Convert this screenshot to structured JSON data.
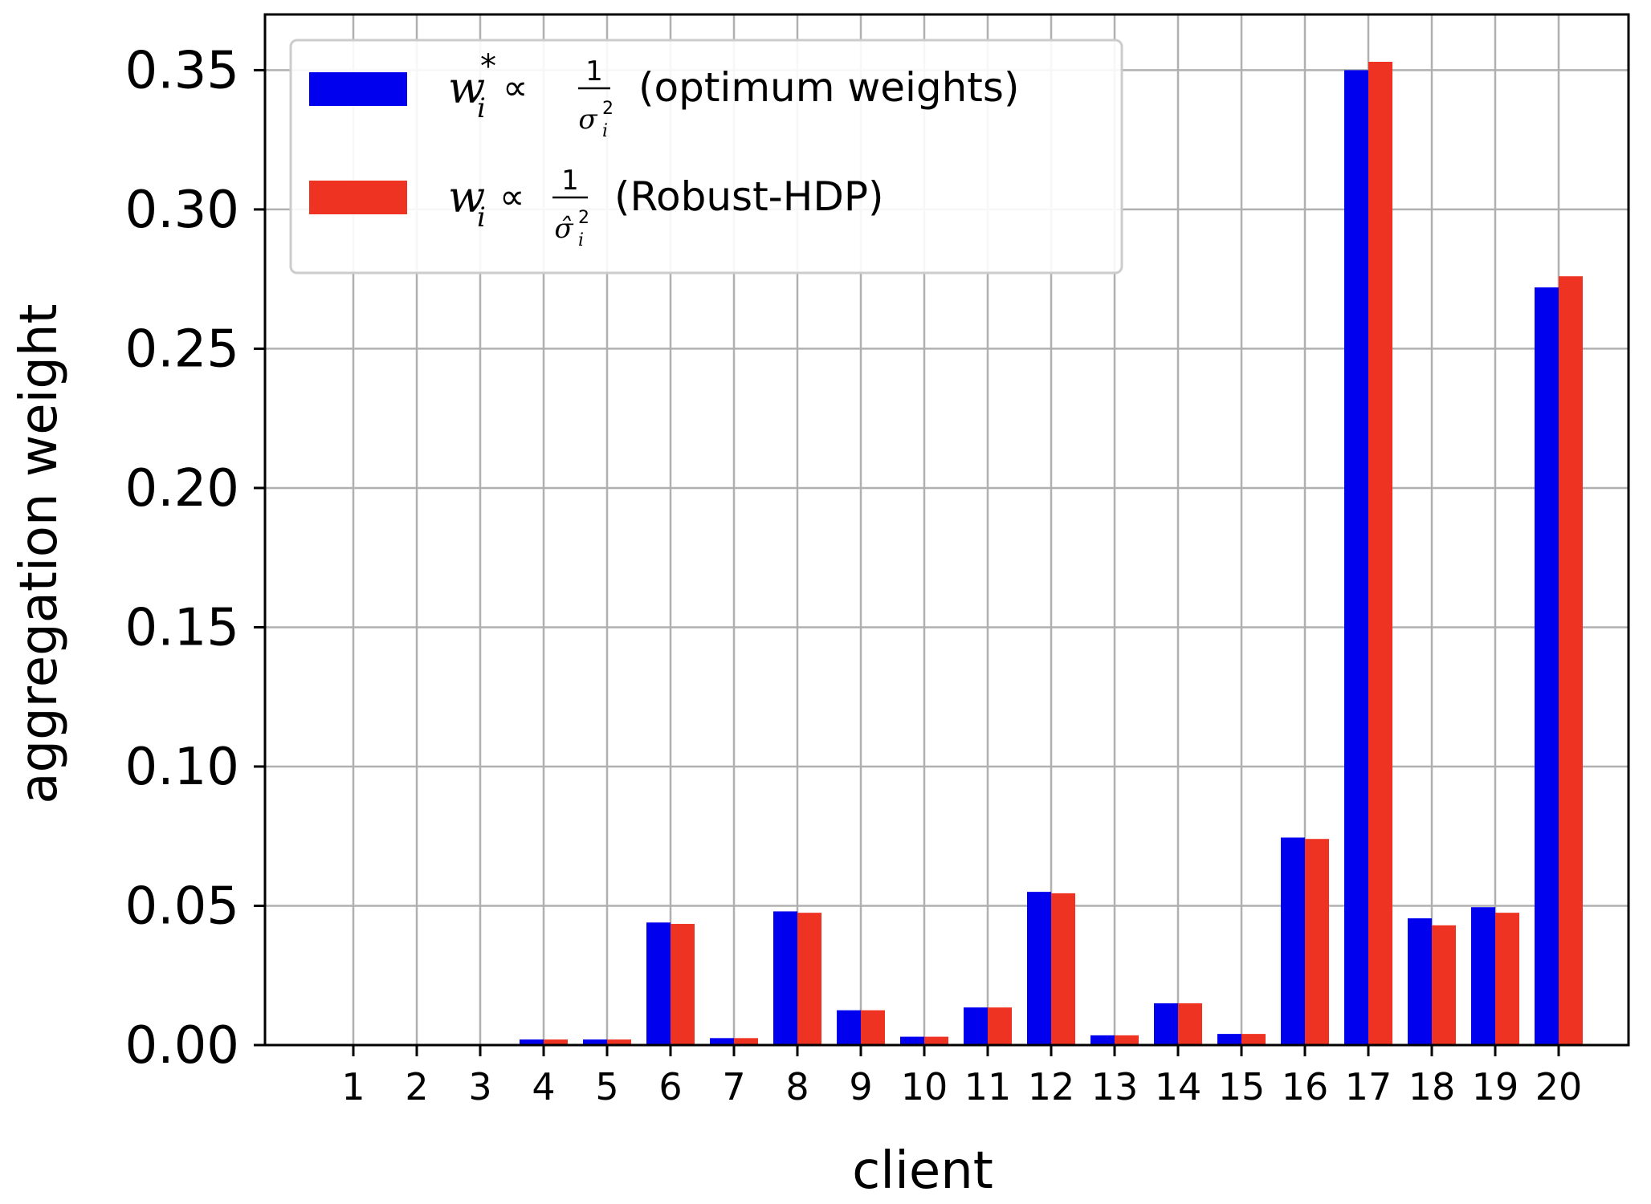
{
  "chart_data": {
    "type": "bar",
    "xlabel": "client",
    "ylabel": "aggregation weight",
    "ylim": [
      0,
      0.37
    ],
    "yticks": [
      "0.00",
      "0.05",
      "0.10",
      "0.15",
      "0.20",
      "0.25",
      "0.30",
      "0.35"
    ],
    "grid": true,
    "legend_position": "top-left",
    "categories": [
      "1",
      "2",
      "3",
      "4",
      "5",
      "6",
      "7",
      "8",
      "9",
      "10",
      "11",
      "12",
      "13",
      "14",
      "15",
      "16",
      "17",
      "18",
      "19",
      "20"
    ],
    "series": [
      {
        "name": "w_i* ∝ 1/σ_i² (optimum weights)",
        "legend_suffix": "(optimum weights)",
        "color": "#0000ee",
        "values": [
          0.0,
          0.0,
          0.0,
          0.002,
          0.002,
          0.044,
          0.0025,
          0.048,
          0.0125,
          0.003,
          0.0135,
          0.055,
          0.0035,
          0.015,
          0.004,
          0.0745,
          0.35,
          0.0455,
          0.0495,
          0.272
        ]
      },
      {
        "name": "w_i ∝ 1/σ̂_i² (Robust-HDP)",
        "legend_suffix": "(Robust-HDP)",
        "color": "#ee3322",
        "values": [
          0.0,
          0.0,
          0.0,
          0.002,
          0.002,
          0.0435,
          0.0025,
          0.0475,
          0.0125,
          0.003,
          0.0135,
          0.0545,
          0.0035,
          0.015,
          0.004,
          0.074,
          0.353,
          0.043,
          0.0475,
          0.276
        ]
      }
    ]
  }
}
